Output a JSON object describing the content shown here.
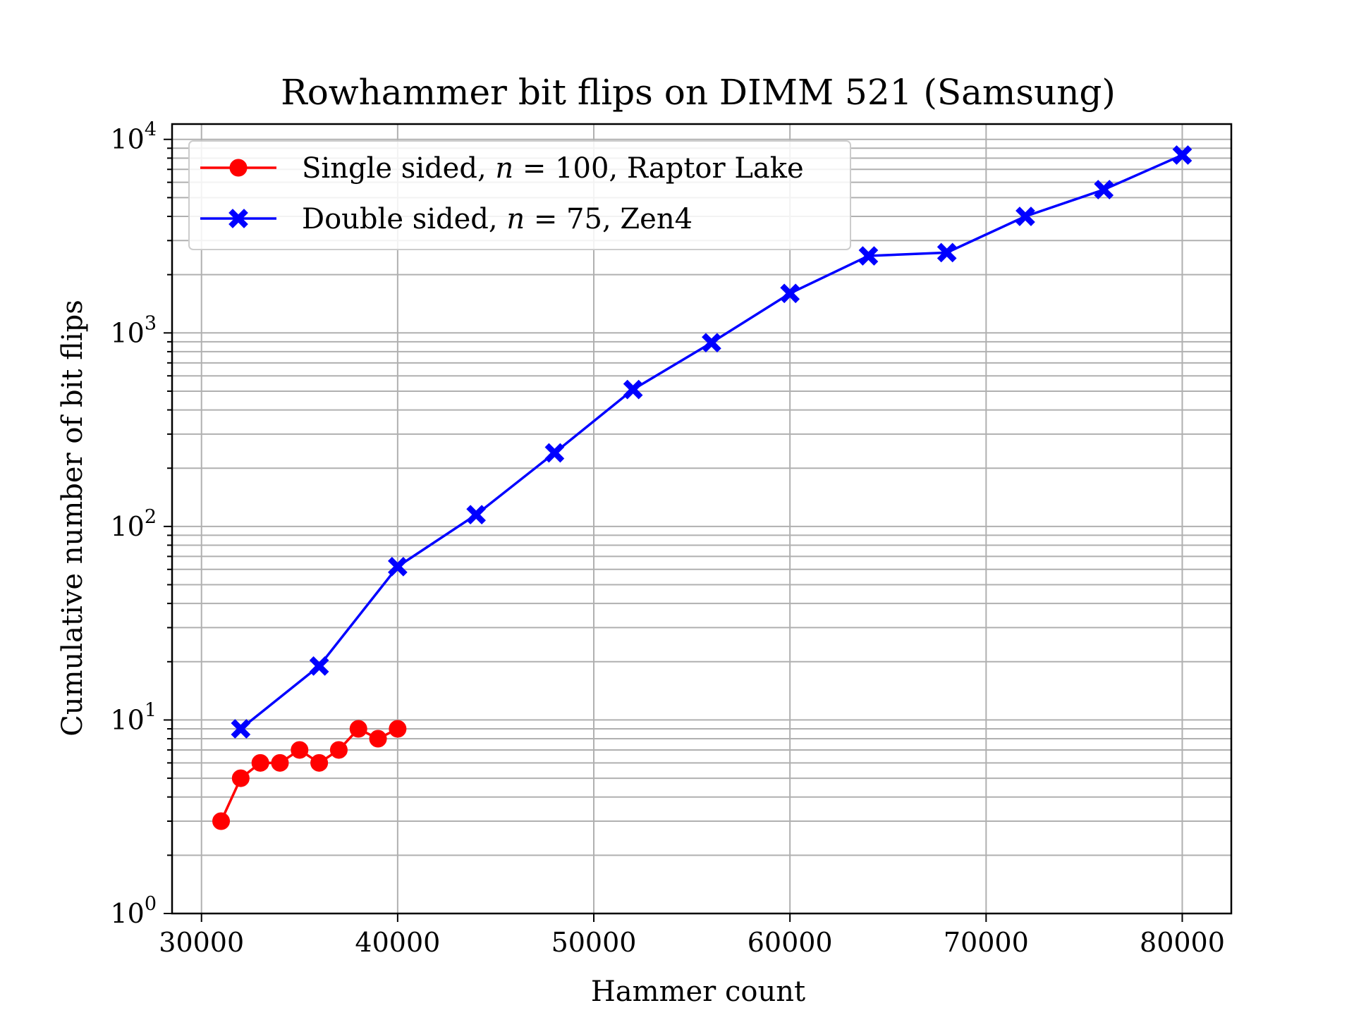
{
  "chart_data": {
    "type": "line",
    "title": "Rowhammer bit flips on DIMM 521 (Samsung)",
    "xlabel": "Hammer count",
    "ylabel": "Cumulative number of bit flips",
    "xlim": [
      28500,
      82500
    ],
    "ylim": [
      1,
      12000
    ],
    "yscale": "log",
    "grid": true,
    "legend_position": "upper-left",
    "x_ticks": [
      30000,
      40000,
      50000,
      60000,
      70000,
      80000
    ],
    "x_tick_labels": [
      "30000",
      "40000",
      "50000",
      "60000",
      "70000",
      "80000"
    ],
    "y_ticks": [
      1,
      10,
      100,
      1000,
      10000
    ],
    "y_tick_labels": [
      {
        "base": "10",
        "exp": "0"
      },
      {
        "base": "10",
        "exp": "1"
      },
      {
        "base": "10",
        "exp": "2"
      },
      {
        "base": "10",
        "exp": "3"
      },
      {
        "base": "10",
        "exp": "4"
      }
    ],
    "series": [
      {
        "name": "Single sided, n = 100, Raptor Lake",
        "legend_parts": [
          "Single sided, ",
          "n",
          " = 100, Raptor Lake"
        ],
        "color": "#ff0000",
        "marker": "circle",
        "x": [
          31000,
          32000,
          33000,
          34000,
          35000,
          36000,
          37000,
          38000,
          39000,
          40000
        ],
        "y": [
          3,
          5,
          6,
          6,
          7,
          6,
          7,
          9,
          8,
          9
        ]
      },
      {
        "name": "Double sided, n = 75, Zen4",
        "legend_parts": [
          "Double sided, ",
          "n",
          " = 75, Zen4"
        ],
        "color": "#0000ff",
        "marker": "x-filled",
        "x": [
          32000,
          36000,
          40000,
          44000,
          48000,
          52000,
          56000,
          60000,
          64000,
          68000,
          72000,
          76000,
          80000
        ],
        "y": [
          9,
          19,
          62,
          115,
          240,
          510,
          890,
          1600,
          2500,
          2600,
          4000,
          5500,
          8300
        ]
      }
    ]
  }
}
